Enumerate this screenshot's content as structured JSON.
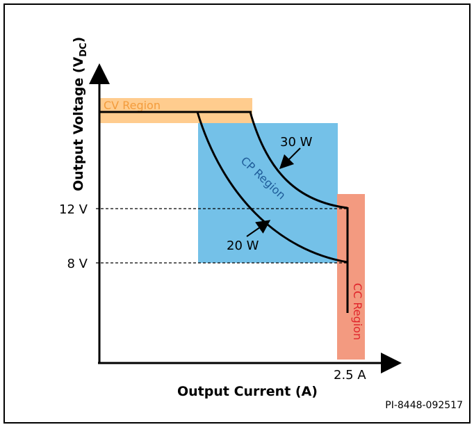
{
  "axes": {
    "y_title_main": "Output Voltage (V",
    "y_title_sub": "DC",
    "y_title_close": ")",
    "x_title": "Output Current (A)"
  },
  "ticks": {
    "y_12": "12 V",
    "y_8": "8 V",
    "x_2_5": "2.5 A"
  },
  "regions": {
    "cv": {
      "label": "CV Region",
      "color": "#FFCC8E",
      "text_color": "#F39C3C"
    },
    "cp": {
      "label": "CP Region",
      "color": "#74C1E8",
      "text_color": "#1F5C99"
    },
    "cc": {
      "label": "CC Region",
      "color": "#F39A80",
      "text_color": "#E0252B"
    }
  },
  "curves": {
    "w30": "30 W",
    "w20": "20 W"
  },
  "part_number": "PI-8448-092517"
}
